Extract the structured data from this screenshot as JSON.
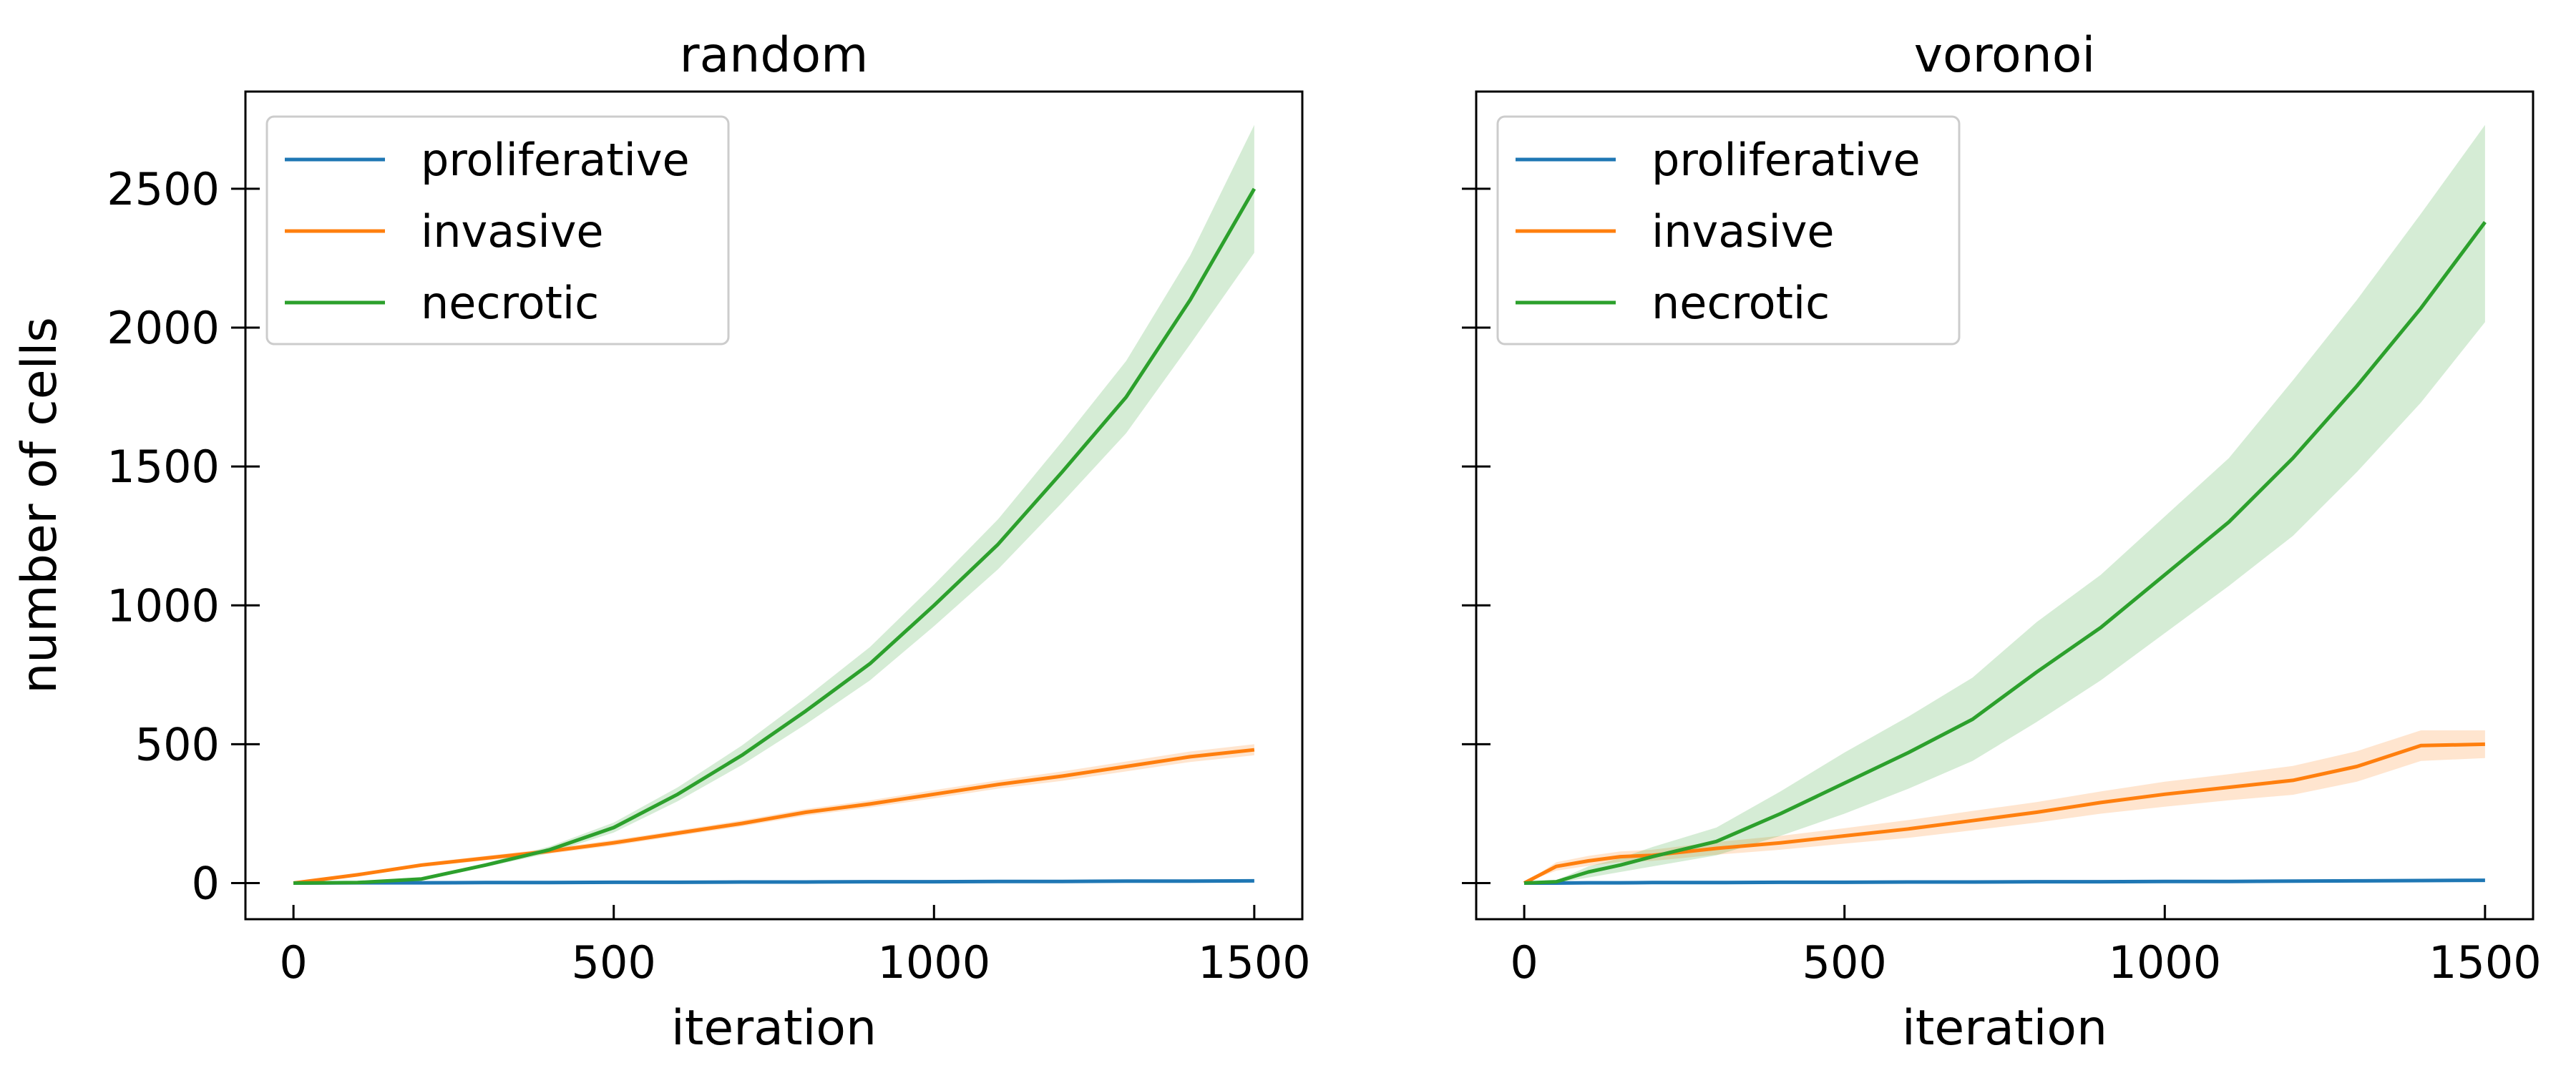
{
  "chart_data": [
    {
      "type": "line",
      "title": "random",
      "xlabel": "iteration",
      "ylabel": "number of cells",
      "xlim": [
        -75,
        1575
      ],
      "ylim": [
        -130,
        2850
      ],
      "xticks": [
        "0",
        "500",
        "1000",
        "1500"
      ],
      "yticks": [
        "0",
        "500",
        "1000",
        "1500",
        "2000",
        "2500"
      ],
      "grid": false,
      "legend": "top-left",
      "x": [
        0,
        100,
        200,
        300,
        400,
        500,
        600,
        700,
        800,
        900,
        1000,
        1100,
        1200,
        1300,
        1400,
        1500
      ],
      "series": [
        {
          "name": "proliferative",
          "color": "#1f77b4",
          "values": [
            0,
            1,
            1,
            2,
            2,
            3,
            3,
            4,
            4,
            5,
            5,
            6,
            6,
            7,
            7,
            8
          ],
          "lower": [
            0,
            0,
            0,
            1,
            1,
            2,
            2,
            3,
            3,
            4,
            4,
            5,
            5,
            6,
            6,
            7
          ],
          "upper": [
            0,
            2,
            2,
            3,
            3,
            4,
            4,
            5,
            5,
            6,
            6,
            7,
            7,
            8,
            8,
            9
          ]
        },
        {
          "name": "invasive",
          "color": "#ff7f0e",
          "values": [
            0,
            30,
            65,
            90,
            115,
            145,
            180,
            215,
            255,
            285,
            320,
            355,
            385,
            420,
            455,
            480
          ],
          "lower": [
            0,
            25,
            58,
            82,
            106,
            135,
            170,
            204,
            243,
            272,
            305,
            340,
            368,
            402,
            436,
            460
          ],
          "upper": [
            0,
            35,
            72,
            98,
            124,
            155,
            190,
            226,
            267,
            298,
            335,
            370,
            402,
            438,
            474,
            500
          ]
        },
        {
          "name": "necrotic",
          "color": "#2ca02c",
          "values": [
            0,
            2,
            15,
            65,
            120,
            200,
            320,
            460,
            620,
            790,
            1000,
            1220,
            1480,
            1750,
            2100,
            2500
          ],
          "lower": [
            0,
            1,
            12,
            58,
            108,
            182,
            295,
            425,
            572,
            730,
            925,
            1130,
            1370,
            1620,
            1940,
            2270
          ],
          "upper": [
            0,
            3,
            18,
            72,
            132,
            218,
            345,
            495,
            668,
            850,
            1075,
            1310,
            1590,
            1880,
            2260,
            2730
          ]
        }
      ]
    },
    {
      "type": "line",
      "title": "voronoi",
      "xlabel": "iteration",
      "ylabel": "",
      "xlim": [
        -75,
        1575
      ],
      "ylim": [
        -130,
        2850
      ],
      "xticks": [
        "0",
        "500",
        "1000",
        "1500"
      ],
      "yticks": [
        "",
        "",
        "",
        "",
        "",
        ""
      ],
      "grid": false,
      "legend": "top-left",
      "x": [
        0,
        50,
        100,
        150,
        200,
        300,
        400,
        500,
        600,
        700,
        800,
        900,
        1000,
        1100,
        1200,
        1300,
        1400,
        1500
      ],
      "series": [
        {
          "name": "proliferative",
          "color": "#1f77b4",
          "values": [
            0,
            0,
            1,
            1,
            2,
            2,
            3,
            3,
            4,
            4,
            5,
            5,
            6,
            6,
            7,
            8,
            9,
            10
          ],
          "lower": [
            0,
            0,
            0,
            0,
            1,
            1,
            2,
            2,
            3,
            3,
            4,
            4,
            5,
            5,
            6,
            7,
            8,
            9
          ],
          "upper": [
            0,
            1,
            2,
            2,
            3,
            3,
            4,
            4,
            5,
            5,
            6,
            6,
            7,
            7,
            8,
            9,
            10,
            11
          ]
        },
        {
          "name": "invasive",
          "color": "#ff7f0e",
          "values": [
            0,
            60,
            80,
            95,
            100,
            125,
            145,
            170,
            195,
            225,
            255,
            290,
            320,
            345,
            370,
            420,
            495,
            500
          ],
          "lower": [
            0,
            45,
            62,
            76,
            80,
            102,
            120,
            142,
            163,
            190,
            218,
            250,
            275,
            298,
            318,
            365,
            440,
            450
          ],
          "upper": [
            0,
            75,
            98,
            114,
            120,
            148,
            170,
            198,
            227,
            260,
            292,
            330,
            365,
            392,
            422,
            475,
            550,
            550
          ]
        },
        {
          "name": "necrotic",
          "color": "#2ca02c",
          "values": [
            0,
            5,
            40,
            65,
            95,
            150,
            250,
            360,
            470,
            590,
            760,
            920,
            1110,
            1300,
            1530,
            1790,
            2070,
            2380
          ],
          "lower": [
            0,
            0,
            20,
            40,
            60,
            100,
            170,
            250,
            340,
            440,
            580,
            730,
            900,
            1070,
            1250,
            1480,
            1730,
            2020
          ],
          "upper": [
            0,
            10,
            60,
            90,
            130,
            200,
            330,
            470,
            600,
            740,
            940,
            1110,
            1320,
            1530,
            1810,
            2100,
            2410,
            2730
          ]
        }
      ]
    }
  ]
}
